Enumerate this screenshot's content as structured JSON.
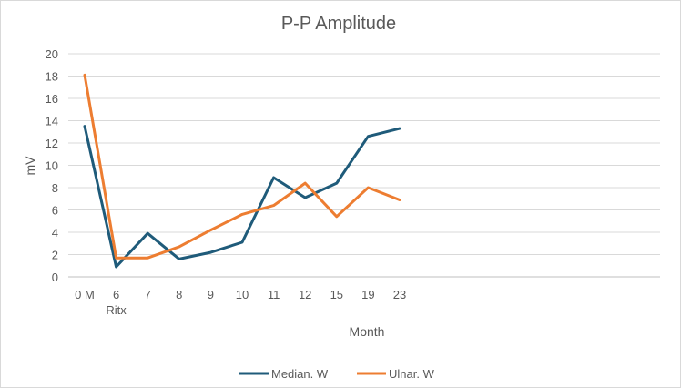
{
  "chart_data": {
    "type": "line",
    "title": "P-P Amplitude",
    "xlabel": "Month",
    "ylabel": "mV",
    "categories": [
      "0 M",
      "6",
      "7",
      "8",
      "9",
      "10",
      "11",
      "12",
      "15",
      "19",
      "23"
    ],
    "category_sublabels": {
      "1": "Ritx"
    },
    "ylim": [
      0,
      20
    ],
    "yticks": [
      0,
      2,
      4,
      6,
      8,
      10,
      12,
      14,
      16,
      18,
      20
    ],
    "grid": "horizontal",
    "legend_position": "bottom",
    "series": [
      {
        "name": "Median. W",
        "color": "#1f5b7a",
        "values": [
          13.5,
          0.9,
          3.9,
          1.6,
          2.2,
          3.1,
          8.9,
          7.1,
          8.4,
          12.6,
          13.3
        ]
      },
      {
        "name": "Ulnar. W",
        "color": "#ed7d31",
        "values": [
          18.1,
          1.7,
          1.7,
          2.7,
          4.2,
          5.6,
          6.4,
          8.4,
          5.4,
          8.0,
          6.9
        ]
      }
    ]
  }
}
